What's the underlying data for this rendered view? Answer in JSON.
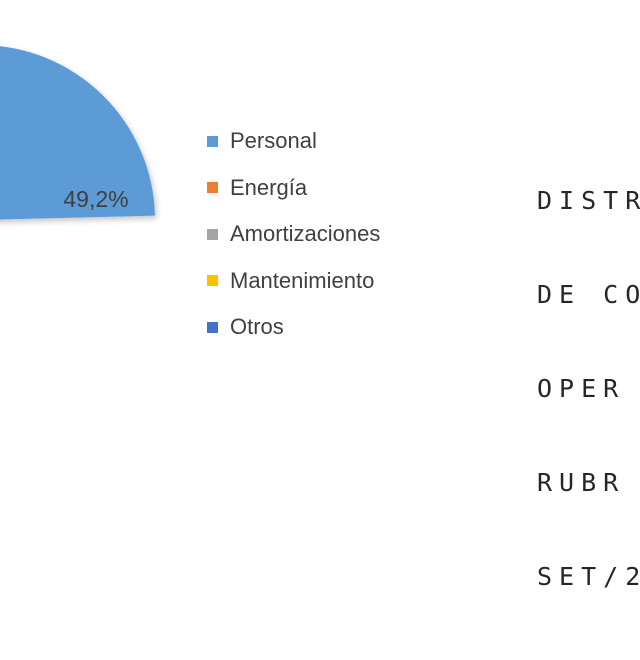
{
  "chart_data": {
    "type": "pie",
    "title_lines": [
      "DISTR",
      "DE CO",
      "OPER",
      "RUBR",
      "SET/2"
    ],
    "slices": [
      {
        "name": "Personal",
        "value": 49.2,
        "label": "49,2%",
        "color": "#5B9BD5"
      },
      {
        "name": "Energía",
        "value": null,
        "color": "#ED7D31"
      },
      {
        "name": "Amortizaciones",
        "value": null,
        "color": "#A5A5A5"
      },
      {
        "name": "Mantenimiento",
        "value": null,
        "color": "#FFC000"
      },
      {
        "name": "Otros",
        "value": null,
        "color": "#4472C4"
      }
    ],
    "legend_position": "right"
  }
}
